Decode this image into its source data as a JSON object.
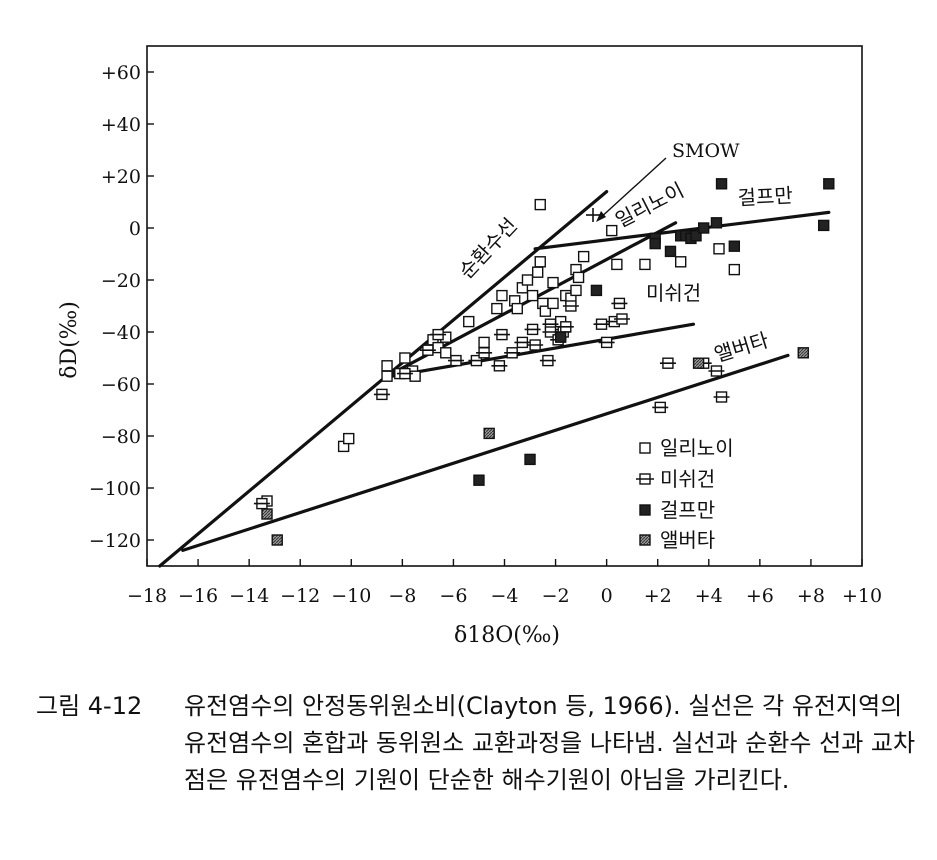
{
  "chart_data": {
    "type": "scatter",
    "xlabel": "δ18O(‰)",
    "ylabel": "δD(‰)",
    "xlim": [
      -18,
      10
    ],
    "ylim": [
      -130,
      70
    ],
    "x_ticks": [
      -18,
      -16,
      -14,
      -12,
      -10,
      -8,
      -6,
      -4,
      -2,
      0,
      2,
      4,
      6,
      8,
      10
    ],
    "x_tick_labels": [
      "−18",
      "−16",
      "−14",
      "−12",
      "−10",
      "−8",
      "−6",
      "−4",
      "−2",
      "0",
      "+2",
      "+4",
      "+6",
      "+8",
      "+10"
    ],
    "y_ticks": [
      -120,
      -100,
      -80,
      -60,
      -40,
      -20,
      0,
      20,
      40,
      60
    ],
    "y_tick_labels": [
      "−120",
      "−100",
      "−80",
      "−60",
      "−40",
      "−20",
      "0",
      "+20",
      "+40",
      "+60"
    ],
    "legend_position": "bottom-right",
    "series": [
      {
        "name": "일리노이",
        "marker": "open-square",
        "points": [
          [
            -13.3,
            -105
          ],
          [
            -10.3,
            -84
          ],
          [
            -10.1,
            -81
          ],
          [
            -8.6,
            -53
          ],
          [
            -8.6,
            -57
          ],
          [
            -8.1,
            -56
          ],
          [
            -7.9,
            -50
          ],
          [
            -7.6,
            -55
          ],
          [
            -7.5,
            -57
          ],
          [
            -6.8,
            -43
          ],
          [
            -6.6,
            -46
          ],
          [
            -6.3,
            -48
          ],
          [
            -6.3,
            -42
          ],
          [
            -5.4,
            -36
          ],
          [
            -4.8,
            -44
          ],
          [
            -4.3,
            -31
          ],
          [
            -4.1,
            -26
          ],
          [
            -3.6,
            -28
          ],
          [
            -3.5,
            -31
          ],
          [
            -3.3,
            -23
          ],
          [
            -3.1,
            -20
          ],
          [
            -2.9,
            -26
          ],
          [
            -2.7,
            -17
          ],
          [
            -2.6,
            -13
          ],
          [
            -2.5,
            -29
          ],
          [
            -2.4,
            -32
          ],
          [
            -2.1,
            -21
          ],
          [
            -2.1,
            -29
          ],
          [
            -1.8,
            -36
          ],
          [
            -1.8,
            -41
          ],
          [
            -1.6,
            -26
          ],
          [
            -1.4,
            -27
          ],
          [
            -1.2,
            -24
          ],
          [
            -1.2,
            -16
          ],
          [
            -1.1,
            -19
          ],
          [
            -0.9,
            -11
          ],
          [
            -2.6,
            9
          ],
          [
            0.2,
            -1
          ],
          [
            0.4,
            -14
          ],
          [
            1.5,
            -14
          ],
          [
            2.9,
            -13
          ],
          [
            4.4,
            -8
          ],
          [
            5.0,
            -16
          ]
        ]
      },
      {
        "name": "미쉬건",
        "marker": "open-square-bar",
        "points": [
          [
            -13.5,
            -106
          ],
          [
            -8.8,
            -64
          ],
          [
            -7.9,
            -56
          ],
          [
            -7.0,
            -47
          ],
          [
            -6.6,
            -41
          ],
          [
            -5.9,
            -51
          ],
          [
            -5.1,
            -51
          ],
          [
            -4.8,
            -48
          ],
          [
            -4.2,
            -53
          ],
          [
            -4.1,
            -41
          ],
          [
            -3.7,
            -48
          ],
          [
            -3.3,
            -44
          ],
          [
            -2.9,
            -39
          ],
          [
            -2.8,
            -45
          ],
          [
            -2.3,
            -51
          ],
          [
            -2.2,
            -37
          ],
          [
            -2.2,
            -40
          ],
          [
            -1.9,
            -43
          ],
          [
            -1.7,
            -40
          ],
          [
            -1.6,
            -38
          ],
          [
            -1.4,
            -30
          ],
          [
            -0.2,
            -37
          ],
          [
            0.0,
            -44
          ],
          [
            0.3,
            -36
          ],
          [
            0.5,
            -29
          ],
          [
            0.6,
            -35
          ],
          [
            2.1,
            -69
          ],
          [
            2.4,
            -52
          ],
          [
            3.8,
            -52
          ],
          [
            4.3,
            -55
          ],
          [
            4.5,
            -65
          ]
        ]
      },
      {
        "name": "걸프만",
        "marker": "filled-square",
        "points": [
          [
            -5.0,
            -97
          ],
          [
            -3.0,
            -89
          ],
          [
            -1.8,
            -42
          ],
          [
            -0.4,
            -24
          ],
          [
            1.9,
            -4
          ],
          [
            1.9,
            -6
          ],
          [
            2.5,
            -9
          ],
          [
            2.9,
            -3
          ],
          [
            3.1,
            -3
          ],
          [
            3.3,
            -4
          ],
          [
            3.5,
            -3
          ],
          [
            3.8,
            0
          ],
          [
            4.3,
            2
          ],
          [
            4.5,
            17
          ],
          [
            5.0,
            -7
          ],
          [
            8.5,
            1
          ],
          [
            8.7,
            17
          ]
        ]
      },
      {
        "name": "앨버타",
        "marker": "hatched-square",
        "points": [
          [
            -13.3,
            -110
          ],
          [
            -12.9,
            -120
          ],
          [
            -4.6,
            -79
          ],
          [
            3.6,
            -52
          ],
          [
            7.7,
            -48
          ]
        ]
      }
    ],
    "lines": [
      {
        "label": "순환수선",
        "from": [
          -17.5,
          -130
        ],
        "to": [
          0,
          14
        ]
      },
      {
        "label": "일리노이",
        "from": [
          -8.6,
          -57
        ],
        "to": [
          2.7,
          2
        ]
      },
      {
        "label": "걸프만",
        "from": [
          -2.8,
          -8
        ],
        "to": [
          8.7,
          6
        ]
      },
      {
        "label": "미쉬건",
        "from": [
          -8.4,
          -57
        ],
        "to": [
          3.4,
          -37
        ]
      },
      {
        "label": "앨버타",
        "from": [
          -16.6,
          -124
        ],
        "to": [
          7.1,
          -49
        ]
      }
    ],
    "annotations": {
      "smow_label": "SMOW",
      "meteoric_line_label": "순환수선",
      "illinois_label": "일리노이",
      "gulf_label": "걸프만",
      "michigan_label": "미쉬건",
      "alberta_label": "앨버타"
    }
  },
  "caption": {
    "label": "그림 4-12",
    "text": "유전염수의 안정동위원소비(Clayton 등, 1966). 실선은 각 유전지역의 유전염수의 혼합과 동위원소 교환과정을 나타냄. 실선과 순환수 선과 교차점은 유전염수의 기원이 단순한 해수기원이 아님을 가리킨다."
  }
}
